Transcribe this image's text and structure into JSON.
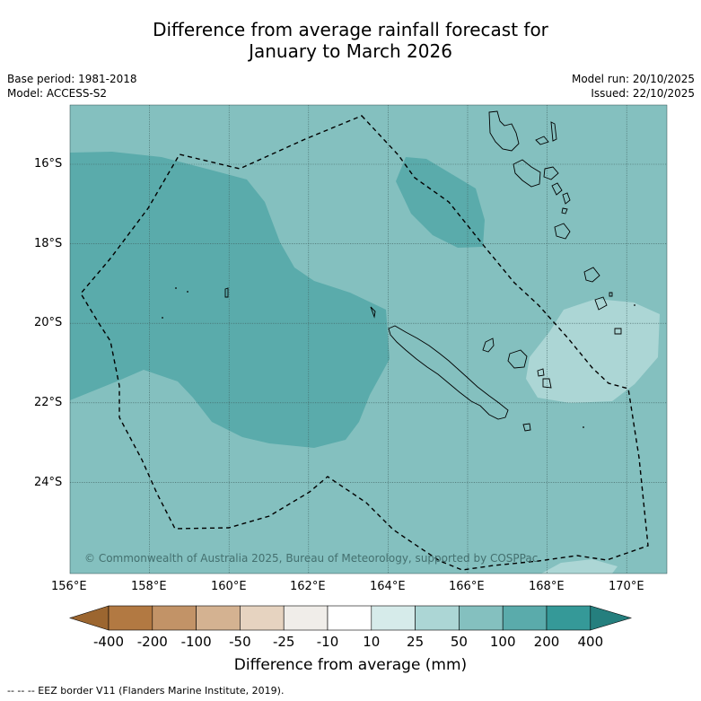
{
  "title_line1": "Difference from average rainfall forecast for",
  "title_line2": "January to March 2026",
  "base_period": "Base period: 1981-2018",
  "model": "Model: ACCESS-S2",
  "model_run": "Model run: 20/10/2025",
  "issued": "Issued: 22/10/2025",
  "copyright": "© Commonwealth of Australia 2025, Bureau of Meteorology, supported by COSPPac",
  "lat_labels": [
    "16°S",
    "18°S",
    "20°S",
    "22°S",
    "24°S"
  ],
  "lon_labels": [
    "156°E",
    "158°E",
    "160°E",
    "162°E",
    "164°E",
    "166°E",
    "168°E",
    "170°E"
  ],
  "colorbar": {
    "ticks": [
      "-400",
      "-200",
      "-100",
      "-50",
      "-25",
      "-10",
      "10",
      "25",
      "50",
      "100",
      "200",
      "400"
    ],
    "colors": [
      "#b27942",
      "#c29367",
      "#d4b291",
      "#e6d3c0",
      "#f0ede9",
      "#ffffff",
      "#d6ebea",
      "#acd6d5",
      "#84c0bf",
      "#5aabab",
      "#359998"
    ],
    "under_color": "#9c6630",
    "over_color": "#257f7e",
    "title": "Difference from average (mm)"
  },
  "legend_note": "--  --  -- EEZ border V11 (Flanders Marine Institute, 2019).",
  "map_colors": {
    "base": "#84c0bf",
    "wet": "#5aabab",
    "moderate": "#acd6d5",
    "grid": "#3f5f5f"
  }
}
